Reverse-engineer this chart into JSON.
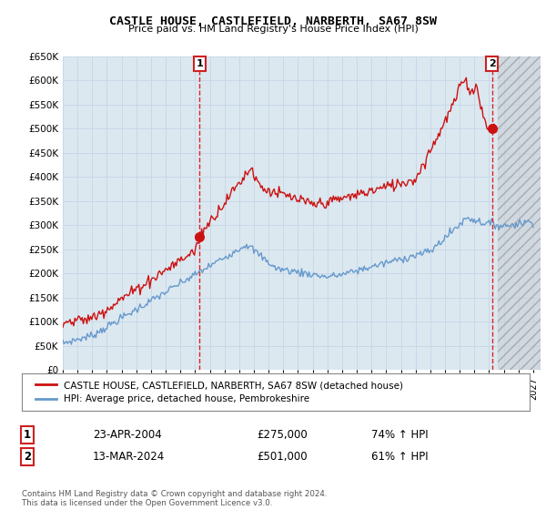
{
  "title": "CASTLE HOUSE, CASTLEFIELD, NARBERTH, SA67 8SW",
  "subtitle": "Price paid vs. HM Land Registry's House Price Index (HPI)",
  "background_color": "#ffffff",
  "grid_color": "#c8d8e8",
  "plot_bg_color": "#dce8f0",
  "ylim": [
    0,
    650000
  ],
  "yticks": [
    0,
    50000,
    100000,
    150000,
    200000,
    250000,
    300000,
    350000,
    400000,
    450000,
    500000,
    550000,
    600000,
    650000
  ],
  "ytick_labels": [
    "£0",
    "£50K",
    "£100K",
    "£150K",
    "£200K",
    "£250K",
    "£300K",
    "£350K",
    "£400K",
    "£450K",
    "£500K",
    "£550K",
    "£600K",
    "£650K"
  ],
  "xmin_year": 1995.0,
  "xmax_year": 2027.5,
  "xtick_years": [
    1995,
    1996,
    1997,
    1998,
    1999,
    2000,
    2001,
    2002,
    2003,
    2004,
    2005,
    2006,
    2007,
    2008,
    2009,
    2010,
    2011,
    2012,
    2013,
    2014,
    2015,
    2016,
    2017,
    2018,
    2019,
    2020,
    2021,
    2022,
    2023,
    2024,
    2025,
    2026,
    2027
  ],
  "sale1_x": 2004.3,
  "sale1_y": 275000,
  "sale2_x": 2024.2,
  "sale2_y": 501000,
  "vline_color": "#dd2222",
  "hpi_line_color": "#6699cc",
  "price_line_color": "#cc1111",
  "shaded_start": 2024.6,
  "legend_line1": "CASTLE HOUSE, CASTLEFIELD, NARBERTH, SA67 8SW (detached house)",
  "legend_line2": "HPI: Average price, detached house, Pembrokeshire",
  "annotation1_date": "23-APR-2004",
  "annotation1_price": "£275,000",
  "annotation1_hpi": "74% ↑ HPI",
  "annotation2_date": "13-MAR-2024",
  "annotation2_price": "£501,000",
  "annotation2_hpi": "61% ↑ HPI",
  "footer": "Contains HM Land Registry data © Crown copyright and database right 2024.\nThis data is licensed under the Open Government Licence v3.0."
}
